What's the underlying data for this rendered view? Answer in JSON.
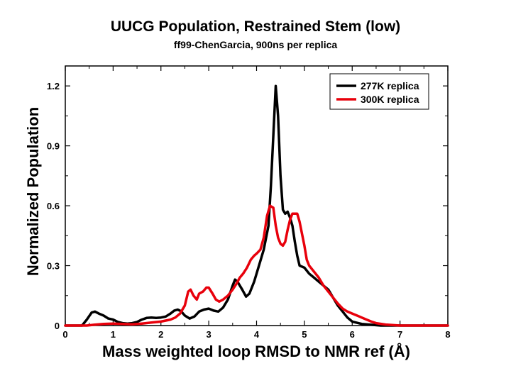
{
  "chart_data": {
    "type": "line",
    "title": "UUCG Population, Restrained Stem (low)",
    "subtitle": "ff99-ChenGarcia, 900ns per replica",
    "xlabel": "Mass weighted loop RMSD to NMR ref (Å)",
    "ylabel": "Normalized Population",
    "xlim": [
      0,
      8
    ],
    "ylim": [
      0,
      1.3
    ],
    "xticks": [
      0,
      1,
      2,
      3,
      4,
      5,
      6,
      7,
      8
    ],
    "yticks": [
      0,
      0.3,
      0.6,
      0.9,
      1.2
    ],
    "ytick_labels": [
      "0",
      "0.3",
      "0.6",
      "0.9",
      "1.2"
    ],
    "legend_position": "top-right",
    "series": [
      {
        "name": "277K replica",
        "color": "#000000",
        "points": [
          [
            0.0,
            0.0
          ],
          [
            0.35,
            0.0
          ],
          [
            0.45,
            0.03
          ],
          [
            0.55,
            0.065
          ],
          [
            0.62,
            0.07
          ],
          [
            0.7,
            0.06
          ],
          [
            0.8,
            0.05
          ],
          [
            0.9,
            0.035
          ],
          [
            1.0,
            0.03
          ],
          [
            1.1,
            0.018
          ],
          [
            1.2,
            0.012
          ],
          [
            1.3,
            0.01
          ],
          [
            1.4,
            0.012
          ],
          [
            1.5,
            0.018
          ],
          [
            1.6,
            0.03
          ],
          [
            1.7,
            0.038
          ],
          [
            1.8,
            0.04
          ],
          [
            1.9,
            0.038
          ],
          [
            2.0,
            0.04
          ],
          [
            2.1,
            0.045
          ],
          [
            2.2,
            0.06
          ],
          [
            2.28,
            0.075
          ],
          [
            2.35,
            0.08
          ],
          [
            2.42,
            0.072
          ],
          [
            2.5,
            0.05
          ],
          [
            2.6,
            0.035
          ],
          [
            2.7,
            0.045
          ],
          [
            2.8,
            0.07
          ],
          [
            2.9,
            0.08
          ],
          [
            3.0,
            0.085
          ],
          [
            3.1,
            0.075
          ],
          [
            3.2,
            0.07
          ],
          [
            3.3,
            0.09
          ],
          [
            3.4,
            0.13
          ],
          [
            3.5,
            0.2
          ],
          [
            3.55,
            0.23
          ],
          [
            3.6,
            0.22
          ],
          [
            3.7,
            0.18
          ],
          [
            3.78,
            0.145
          ],
          [
            3.85,
            0.16
          ],
          [
            3.95,
            0.22
          ],
          [
            4.05,
            0.3
          ],
          [
            4.15,
            0.38
          ],
          [
            4.25,
            0.5
          ],
          [
            4.3,
            0.7
          ],
          [
            4.35,
            0.95
          ],
          [
            4.4,
            1.2
          ],
          [
            4.45,
            1.05
          ],
          [
            4.5,
            0.75
          ],
          [
            4.55,
            0.58
          ],
          [
            4.6,
            0.56
          ],
          [
            4.65,
            0.57
          ],
          [
            4.7,
            0.54
          ],
          [
            4.75,
            0.5
          ],
          [
            4.8,
            0.42
          ],
          [
            4.85,
            0.35
          ],
          [
            4.9,
            0.3
          ],
          [
            5.0,
            0.29
          ],
          [
            5.1,
            0.26
          ],
          [
            5.2,
            0.24
          ],
          [
            5.3,
            0.22
          ],
          [
            5.4,
            0.2
          ],
          [
            5.5,
            0.18
          ],
          [
            5.6,
            0.14
          ],
          [
            5.7,
            0.1
          ],
          [
            5.8,
            0.07
          ],
          [
            5.9,
            0.04
          ],
          [
            6.0,
            0.02
          ],
          [
            6.2,
            0.008
          ],
          [
            6.4,
            0.004
          ],
          [
            6.6,
            0.0
          ],
          [
            8.0,
            0.0
          ]
        ]
      },
      {
        "name": "300K replica",
        "color": "#e8000b",
        "points": [
          [
            0.0,
            0.0
          ],
          [
            0.45,
            0.0
          ],
          [
            0.6,
            0.004
          ],
          [
            0.8,
            0.008
          ],
          [
            1.0,
            0.01
          ],
          [
            1.2,
            0.008
          ],
          [
            1.4,
            0.006
          ],
          [
            1.6,
            0.01
          ],
          [
            1.8,
            0.015
          ],
          [
            2.0,
            0.02
          ],
          [
            2.2,
            0.03
          ],
          [
            2.3,
            0.04
          ],
          [
            2.4,
            0.06
          ],
          [
            2.5,
            0.1
          ],
          [
            2.57,
            0.17
          ],
          [
            2.62,
            0.18
          ],
          [
            2.68,
            0.15
          ],
          [
            2.75,
            0.13
          ],
          [
            2.8,
            0.16
          ],
          [
            2.88,
            0.17
          ],
          [
            2.95,
            0.19
          ],
          [
            3.0,
            0.19
          ],
          [
            3.08,
            0.16
          ],
          [
            3.15,
            0.13
          ],
          [
            3.22,
            0.12
          ],
          [
            3.3,
            0.13
          ],
          [
            3.4,
            0.15
          ],
          [
            3.5,
            0.18
          ],
          [
            3.58,
            0.21
          ],
          [
            3.65,
            0.24
          ],
          [
            3.72,
            0.26
          ],
          [
            3.8,
            0.29
          ],
          [
            3.88,
            0.33
          ],
          [
            3.95,
            0.35
          ],
          [
            4.0,
            0.36
          ],
          [
            4.08,
            0.38
          ],
          [
            4.15,
            0.44
          ],
          [
            4.22,
            0.55
          ],
          [
            4.28,
            0.6
          ],
          [
            4.35,
            0.59
          ],
          [
            4.4,
            0.5
          ],
          [
            4.45,
            0.44
          ],
          [
            4.5,
            0.41
          ],
          [
            4.55,
            0.4
          ],
          [
            4.6,
            0.42
          ],
          [
            4.65,
            0.48
          ],
          [
            4.7,
            0.53
          ],
          [
            4.75,
            0.56
          ],
          [
            4.85,
            0.56
          ],
          [
            4.9,
            0.52
          ],
          [
            4.95,
            0.46
          ],
          [
            5.0,
            0.4
          ],
          [
            5.05,
            0.33
          ],
          [
            5.1,
            0.3
          ],
          [
            5.2,
            0.27
          ],
          [
            5.3,
            0.24
          ],
          [
            5.4,
            0.2
          ],
          [
            5.5,
            0.17
          ],
          [
            5.6,
            0.14
          ],
          [
            5.7,
            0.11
          ],
          [
            5.8,
            0.085
          ],
          [
            5.9,
            0.07
          ],
          [
            6.0,
            0.06
          ],
          [
            6.1,
            0.05
          ],
          [
            6.2,
            0.04
          ],
          [
            6.3,
            0.03
          ],
          [
            6.4,
            0.02
          ],
          [
            6.5,
            0.012
          ],
          [
            6.7,
            0.005
          ],
          [
            7.0,
            0.0
          ],
          [
            8.0,
            0.0
          ]
        ]
      }
    ]
  }
}
